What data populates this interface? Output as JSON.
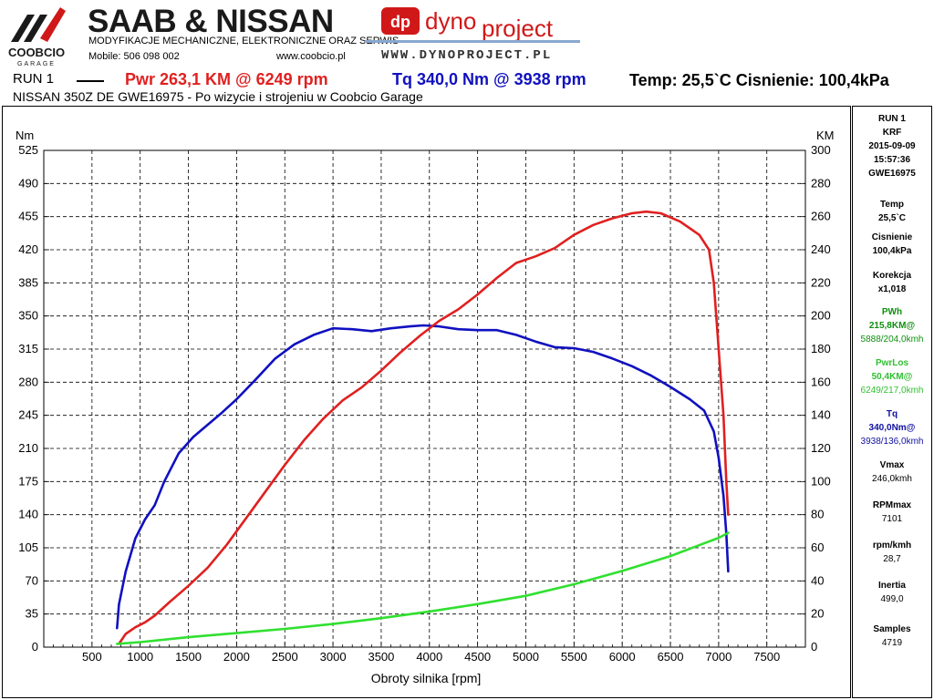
{
  "header": {
    "logo_text": "COOBCIO",
    "logo_sub": "GARAGE",
    "title": "SAAB & NISSAN",
    "subtitle": "MODYFIKACJE MECHANICZNE, ELEKTRONICZNE ORAZ SERWIS",
    "phone": "Mobile: 506 098 002",
    "website": "www.coobcio.pl",
    "dyno_logo_dp": "dp",
    "dyno_logo_word1": "dyno",
    "dyno_logo_word2": "project",
    "dyno_url": "WWW.DYNOPROJECT.PL",
    "run_label": "RUN 1",
    "pwr_summary": "Pwr  263,1 KM @ 6249 rpm",
    "tq_summary": "Tq 340,0 Nm @ 3938 rpm",
    "conditions": "Temp: 25,5`C   Cisnienie: 100,4kPa",
    "vehicle": "NISSAN 350Z DE GWE16975 - Po wizycie i strojeniu w Coobcio Garage"
  },
  "panel": {
    "run": "RUN 1",
    "code": "KRF",
    "date": "2015-09-09",
    "time": "15:57:36",
    "plate": "GWE16975",
    "temp_label": "Temp",
    "temp_value": "25,5`C",
    "press_label": "Cisnienie",
    "press_value": "100,4kPa",
    "korekcja_label": "Korekcja",
    "korekcja_value": "x1,018",
    "pwh_label": "PWh",
    "pwh_value": "215,8KM@",
    "pwh_detail": "5888/204,0kmh",
    "pwrlos_label": "PwrLos",
    "pwrlos_value": "50,4KM@",
    "pwrlos_detail": "6249/217,0kmh",
    "tq_label": "Tq",
    "tq_value": "340,0Nm@",
    "tq_detail": "3938/136,0kmh",
    "vmax_label": "Vmax",
    "vmax_value": "246,0kmh",
    "rpmmax_label": "RPMmax",
    "rpmmax_value": "7101",
    "rpmkmh_label": "rpm/kmh",
    "rpmkmh_value": "28,7",
    "inertia_label": "Inertia",
    "inertia_value": "499,0",
    "samples_label": "Samples",
    "samples_value": "4719"
  },
  "colors": {
    "power": "#e02020",
    "torque": "#1010c0",
    "losses": "#30e030",
    "grid": "#000000"
  },
  "chart_data": {
    "type": "line",
    "xlabel": "Obroty silnika [rpm]",
    "ylabel_left": "Nm",
    "ylabel_right": "KM",
    "xlim": [
      0,
      7900
    ],
    "ylim_left": [
      0,
      525
    ],
    "ylim_right": [
      0,
      300
    ],
    "x_ticks": [
      500,
      1000,
      1500,
      2000,
      2500,
      3000,
      3500,
      4000,
      4500,
      5000,
      5500,
      6000,
      6500,
      7000,
      7500
    ],
    "y_ticks_left": [
      0,
      35,
      70,
      105,
      140,
      175,
      210,
      245,
      280,
      315,
      350,
      385,
      420,
      455,
      490,
      525
    ],
    "y_ticks_right": [
      0,
      20,
      40,
      60,
      80,
      100,
      120,
      140,
      160,
      180,
      200,
      220,
      240,
      260,
      280,
      300
    ],
    "grid": true,
    "series": [
      {
        "name": "Tq",
        "axis": "left",
        "color": "#1010c0",
        "x": [
          760,
          780,
          850,
          950,
          1050,
          1150,
          1250,
          1400,
          1550,
          1700,
          1850,
          2000,
          2200,
          2400,
          2600,
          2800,
          3000,
          3200,
          3400,
          3600,
          3800,
          3938,
          4100,
          4300,
          4500,
          4700,
          4900,
          5100,
          5300,
          5500,
          5700,
          5900,
          6100,
          6300,
          6500,
          6700,
          6850,
          6950,
          7000,
          7050,
          7080,
          7100
        ],
        "y": [
          20,
          45,
          80,
          115,
          135,
          150,
          175,
          205,
          222,
          235,
          248,
          262,
          283,
          305,
          320,
          330,
          337,
          336,
          334,
          337,
          339,
          340,
          339,
          336,
          335,
          335,
          330,
          323,
          317,
          316,
          312,
          305,
          297,
          287,
          275,
          262,
          250,
          228,
          200,
          160,
          120,
          80
        ]
      },
      {
        "name": "Pwr",
        "axis": "right",
        "color": "#e02020",
        "x": [
          780,
          850,
          950,
          1050,
          1150,
          1300,
          1500,
          1700,
          1900,
          2100,
          2300,
          2500,
          2700,
          2900,
          3100,
          3300,
          3500,
          3700,
          3900,
          4100,
          4300,
          4500,
          4700,
          4900,
          5100,
          5300,
          5500,
          5700,
          5900,
          6100,
          6249,
          6400,
          6600,
          6800,
          6900,
          6950,
          7000,
          7050,
          7080,
          7100
        ],
        "y": [
          2,
          8,
          12,
          15,
          19,
          27,
          37,
          48,
          62,
          78,
          94,
          110,
          125,
          138,
          149,
          157,
          167,
          178,
          188,
          197,
          204,
          213,
          223,
          232,
          236,
          241,
          249,
          255,
          259,
          262,
          263,
          262,
          257,
          249,
          240,
          220,
          180,
          140,
          100,
          80
        ]
      },
      {
        "name": "PwrLos",
        "axis": "right",
        "color": "#30e030",
        "x": [
          760,
          1000,
          1500,
          2000,
          2500,
          3000,
          3500,
          4000,
          4500,
          5000,
          5500,
          6000,
          6500,
          7000,
          7100
        ],
        "y": [
          2,
          3,
          6,
          8.5,
          11,
          14,
          17.5,
          21.5,
          26,
          31,
          38,
          46,
          55,
          66,
          69
        ]
      }
    ]
  }
}
